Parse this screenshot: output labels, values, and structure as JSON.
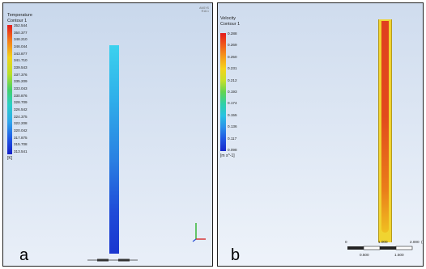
{
  "panel_a": {
    "legend_title": "Temperature",
    "legend_subtitle": "Contour 1",
    "ticks": [
      "352.544",
      "350.377",
      "348.210",
      "346.044",
      "343.877",
      "341.710",
      "339.543",
      "337.376",
      "335.209",
      "333.043",
      "330.876",
      "328.709",
      "326.542",
      "324.375",
      "322.208",
      "320.042",
      "317.875",
      "315.708",
      "313.541"
    ],
    "unit": "[K]",
    "label": "a",
    "corner_text": "ANSYS R18.1",
    "colors": {
      "column_top": "#39c6ea",
      "column_bottom": "#1d3fd6"
    }
  },
  "panel_b": {
    "legend_title": "Velocity",
    "legend_subtitle": "Contour 1",
    "ticks": [
      "0.288",
      "0.269",
      "0.250",
      "0.231",
      "0.212",
      "0.193",
      "0.174",
      "0.155",
      "0.136",
      "0.117",
      "0.098"
    ],
    "unit": "[m s^-1]",
    "label": "b",
    "scale_labels_top": [
      "0",
      "1.000",
      "2.000"
    ],
    "scale_labels_bottom": [
      "0.500",
      "1.500"
    ],
    "scale_unit": "(",
    "colors": {
      "column_outer": "#f0d431",
      "column_core": "#e0401e"
    }
  }
}
